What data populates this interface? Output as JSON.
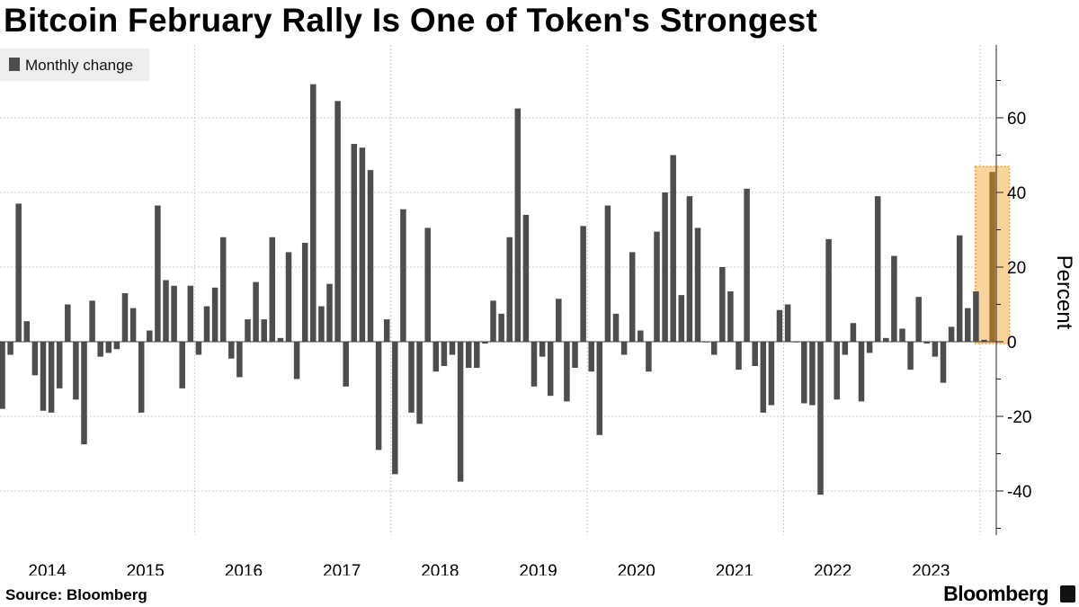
{
  "title": "Bitcoin February Rally Is One of Token's Strongest",
  "source": "Source: Bloomberg",
  "brand": "Bloomberg",
  "colors": {
    "bar": "#4d4d4d",
    "highlight_fill": "#f8d39c",
    "highlight_border": "#f0a020",
    "highlight_bar": "#9a6f2e",
    "grid": "#cccccc",
    "legend_bg": "#eeeeee"
  },
  "chart_data": {
    "type": "bar",
    "title": "Bitcoin February Rally Is One of Token's Strongest",
    "ylabel": "Percent",
    "ylim": [
      -52,
      78
    ],
    "yticks": [
      -40,
      -20,
      0,
      20,
      40,
      60
    ],
    "ytick_labels": [
      "-40",
      "-20",
      "0",
      "20",
      "40",
      "60"
    ],
    "year_labels": [
      "2014",
      "2015",
      "2016",
      "2017",
      "2018",
      "2019",
      "2020",
      "2021",
      "2022",
      "2023"
    ],
    "legend": "Monthly change",
    "legend_position": "top-left",
    "grid": "vertical dotted lines at selected years",
    "start": "2014-01",
    "highlight": {
      "label": "2024-02",
      "value": 45.5
    },
    "series": [
      {
        "name": "Monthly change",
        "values": [
          -18,
          -3.5,
          37,
          5.5,
          -9,
          -18.5,
          -19,
          -12.5,
          10,
          -15.5,
          -27.5,
          11,
          -4,
          -3,
          -2,
          13,
          9,
          -19,
          3,
          36.5,
          16.5,
          15,
          -12.5,
          15,
          -3.5,
          9.5,
          14.5,
          28,
          -4.5,
          -9.5,
          6,
          16,
          6,
          28,
          1,
          24,
          -10,
          26.5,
          69,
          9.5,
          15.5,
          64.5,
          -12,
          53,
          52,
          46,
          -29,
          6,
          -35.5,
          35.5,
          -19,
          -22,
          30.5,
          -8,
          -6.5,
          -3.5,
          -37.5,
          -7,
          -7,
          -0.5,
          11,
          7.5,
          28,
          62.5,
          34,
          -12,
          -4,
          -14.5,
          11.5,
          -16,
          -7,
          31,
          -8,
          -25,
          36.5,
          7.5,
          -3.5,
          24,
          3,
          -8,
          29.5,
          40,
          50,
          12.5,
          39,
          30.5,
          0,
          -3.5,
          20,
          13.5,
          -7.5,
          41,
          -6.5,
          -19,
          -17,
          8.5,
          10,
          0,
          -16.5,
          -17,
          -41,
          27.5,
          -15.5,
          -3.5,
          5,
          -16,
          -3,
          39,
          1,
          23,
          3.5,
          -7.5,
          12,
          -0.5,
          -4,
          -11,
          4,
          28.5,
          9,
          13.5,
          0.5,
          45.5
        ]
      }
    ]
  }
}
